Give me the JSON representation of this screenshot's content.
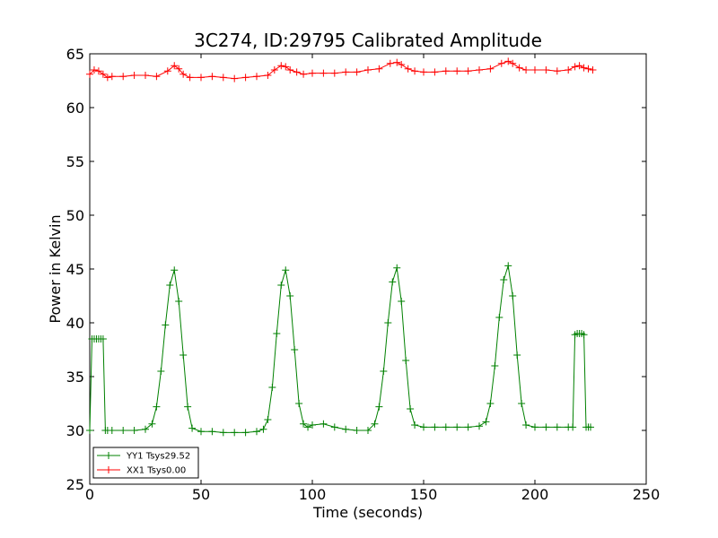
{
  "chart_data": {
    "type": "line",
    "title": "3C274, ID:29795 Calibrated Amplitude",
    "xlabel": "Time (seconds)",
    "ylabel": "Power in Kelvin",
    "xlim": [
      0,
      250
    ],
    "ylim": [
      25,
      65
    ],
    "xticks": [
      "0",
      "50",
      "100",
      "150",
      "200",
      "250"
    ],
    "yticks": [
      "25",
      "30",
      "35",
      "40",
      "45",
      "50",
      "55",
      "60",
      "65"
    ],
    "grid": false,
    "legend_position": "lower-left",
    "marker": "+",
    "series": [
      {
        "name": "YY1 Tsys29.52",
        "color": "#008000",
        "x": [
          0,
          1,
          2,
          3,
          4,
          5,
          6,
          7,
          8,
          10,
          15,
          20,
          25,
          28,
          30,
          32,
          34,
          36,
          38,
          40,
          42,
          44,
          46,
          50,
          55,
          60,
          65,
          70,
          75,
          78,
          80,
          82,
          84,
          86,
          88,
          90,
          92,
          94,
          96,
          98,
          100,
          105,
          110,
          115,
          120,
          125,
          128,
          130,
          132,
          134,
          136,
          138,
          140,
          142,
          144,
          146,
          150,
          155,
          160,
          165,
          170,
          175,
          178,
          180,
          182,
          184,
          186,
          188,
          190,
          192,
          194,
          196,
          200,
          205,
          210,
          215,
          217,
          218,
          219,
          220,
          221,
          222,
          223,
          224,
          225
        ],
        "y": [
          30.0,
          38.5,
          38.5,
          38.5,
          38.5,
          38.5,
          38.5,
          30.0,
          30.0,
          30.0,
          30.0,
          30.0,
          30.1,
          30.6,
          32.2,
          35.5,
          39.8,
          43.5,
          44.9,
          42.0,
          37.0,
          32.2,
          30.2,
          29.9,
          29.9,
          29.8,
          29.8,
          29.8,
          29.9,
          30.1,
          31.0,
          34.0,
          39.0,
          43.5,
          44.9,
          42.5,
          37.5,
          32.5,
          30.6,
          30.3,
          30.5,
          30.6,
          30.3,
          30.1,
          30.0,
          30.0,
          30.6,
          32.2,
          35.5,
          40.0,
          43.8,
          45.1,
          42.0,
          36.5,
          32.0,
          30.5,
          30.3,
          30.3,
          30.3,
          30.3,
          30.3,
          30.4,
          30.8,
          32.5,
          36.0,
          40.5,
          44.0,
          45.3,
          42.5,
          37.0,
          32.5,
          30.5,
          30.3,
          30.3,
          30.3,
          30.3,
          30.3,
          38.9,
          39.0,
          39.0,
          39.0,
          38.9,
          30.3,
          30.3,
          30.3
        ]
      },
      {
        "name": "XX1 Tsys0.00",
        "color": "#ff0000",
        "x": [
          0,
          2,
          4,
          6,
          8,
          10,
          15,
          20,
          25,
          30,
          35,
          38,
          40,
          42,
          45,
          50,
          55,
          60,
          65,
          70,
          75,
          80,
          83,
          86,
          88,
          90,
          93,
          96,
          100,
          105,
          110,
          115,
          120,
          125,
          130,
          135,
          138,
          140,
          143,
          146,
          150,
          155,
          160,
          165,
          170,
          175,
          180,
          185,
          188,
          190,
          193,
          196,
          200,
          205,
          210,
          215,
          218,
          220,
          222,
          224,
          226
        ],
        "y": [
          63.1,
          63.5,
          63.4,
          63.1,
          62.8,
          62.9,
          62.9,
          63.0,
          63.0,
          62.9,
          63.4,
          63.9,
          63.6,
          63.1,
          62.8,
          62.8,
          62.9,
          62.8,
          62.7,
          62.8,
          62.9,
          63.0,
          63.5,
          63.9,
          63.8,
          63.5,
          63.3,
          63.1,
          63.2,
          63.2,
          63.2,
          63.3,
          63.3,
          63.5,
          63.6,
          64.1,
          64.2,
          64.0,
          63.6,
          63.4,
          63.3,
          63.3,
          63.4,
          63.4,
          63.4,
          63.5,
          63.6,
          64.1,
          64.3,
          64.1,
          63.7,
          63.5,
          63.5,
          63.5,
          63.4,
          63.5,
          63.8,
          63.9,
          63.7,
          63.6,
          63.5
        ]
      }
    ]
  }
}
